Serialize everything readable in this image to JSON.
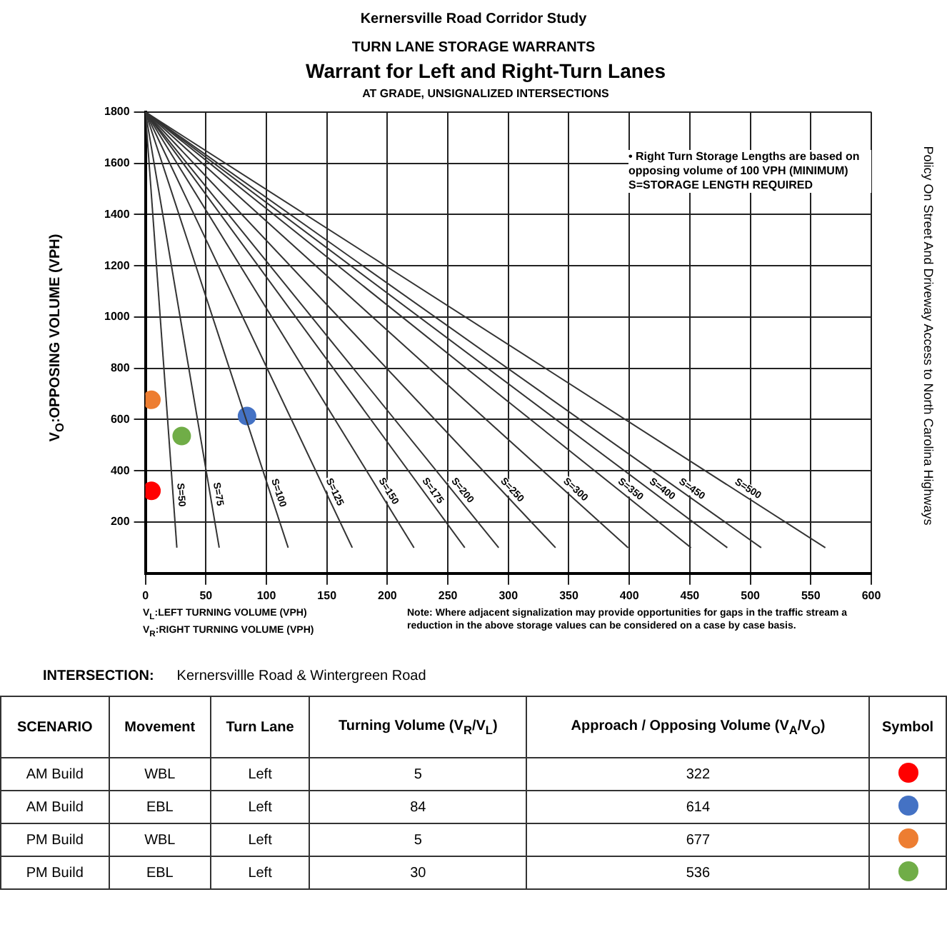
{
  "chart_data": {
    "type": "scatter",
    "title": "Warrant for Left and Right-Turn Lanes",
    "subtitle": "AT GRADE, UNSIGNALIZED INTERSECTIONS",
    "xlabel": "V$_{L}$:LEFT TURNING VOLUME (VPH)\nV$_{R}$:RIGHT TURNING VOLUME (VPH)",
    "ylabel": "V$_{O}$:OPPOSING VOLUME (VPH)",
    "xlim": [
      0,
      600
    ],
    "xticks": [
      0,
      50,
      100,
      150,
      200,
      250,
      300,
      350,
      400,
      450,
      500,
      550,
      600
    ],
    "ylim": [
      0,
      1800
    ],
    "yticks": [
      200,
      400,
      600,
      800,
      1000,
      1200,
      1400,
      1600,
      1800
    ],
    "grid": true,
    "legend": false,
    "marker": "none",
    "series": [
      {
        "name": "S=50",
        "type": "line",
        "color": "#333333",
        "x": [
          0,
          26
        ],
        "values": [
          1800,
          100
        ]
      },
      {
        "name": "S=75",
        "type": "line",
        "color": "#333333",
        "x": [
          0,
          61
        ],
        "values": [
          1800,
          100
        ]
      },
      {
        "name": "S=100",
        "type": "line",
        "color": "#333333",
        "x": [
          0,
          118
        ],
        "values": [
          1800,
          100
        ]
      },
      {
        "name": "S=125",
        "type": "line",
        "color": "#333333",
        "x": [
          0,
          171
        ],
        "values": [
          1800,
          100
        ]
      },
      {
        "name": "S=150",
        "type": "line",
        "color": "#333333",
        "x": [
          0,
          222
        ],
        "values": [
          1800,
          100
        ]
      },
      {
        "name": "S=175",
        "type": "line",
        "color": "#333333",
        "x": [
          0,
          264
        ],
        "values": [
          1800,
          100
        ]
      },
      {
        "name": "S=200",
        "type": "line",
        "color": "#333333",
        "x": [
          0,
          292
        ],
        "values": [
          1800,
          100
        ]
      },
      {
        "name": "S=250",
        "type": "line",
        "color": "#333333",
        "x": [
          0,
          339
        ],
        "values": [
          1800,
          100
        ]
      },
      {
        "name": "S=300",
        "type": "line",
        "color": "#333333",
        "x": [
          0,
          399
        ],
        "values": [
          1800,
          100
        ]
      },
      {
        "name": "S=350",
        "type": "line",
        "color": "#333333",
        "x": [
          0,
          451
        ],
        "values": [
          1800,
          100
        ]
      },
      {
        "name": "S=400",
        "type": "line",
        "color": "#333333",
        "x": [
          0,
          481
        ],
        "values": [
          1800,
          100
        ]
      },
      {
        "name": "S=450",
        "type": "line",
        "color": "#333333",
        "x": [
          0,
          509
        ],
        "values": [
          1800,
          100
        ]
      },
      {
        "name": "S=500",
        "type": "line",
        "color": "#333333",
        "x": [
          0,
          562
        ],
        "values": [
          1800,
          100
        ]
      },
      {
        "type": "scatter",
        "marker": "circle",
        "color": "#ff0000",
        "x": [
          5
        ],
        "values": [
          322
        ]
      },
      {
        "type": "scatter",
        "marker": "circle",
        "color": "#4472c4",
        "x": [
          84
        ],
        "values": [
          614
        ]
      },
      {
        "type": "scatter",
        "marker": "circle",
        "color": "#ed7d31",
        "x": [
          5
        ],
        "values": [
          677
        ]
      },
      {
        "type": "scatter",
        "marker": "circle",
        "color": "#70ad47",
        "x": [
          30
        ],
        "values": [
          536
        ]
      }
    ],
    "annotations": [
      "Kernersville Road Corridor Study",
      "TURN LANE STORAGE WARRANTS",
      "• Right Turn Storage Lengths are based on opposing volume of 100 VPH (MINIMUM)",
      "S=STORAGE LENGTH REQUIRED",
      "Note: Where adjacent signalization may provide opportunities for gaps in the traffic stream a reduction in the above storage values can be considered on a case by case basis.",
      "Policy On Street And Driveway Access to North Carolina Highways",
      "INTERSECTION:",
      "Kernersvillle Road & Wintergreen Road",
      "SCENARIO",
      "Movement",
      "Turn Lane",
      "Turning Volume (V$_{R}$/V$_{L}$)",
      "Approach / Opposing Volume (V$_{A}$/V$_{O}$)",
      "Symbol",
      "AM Build",
      "WBL",
      "Left",
      "5",
      "322",
      "AM Build",
      "EBL",
      "Left",
      "84",
      "614",
      "PM Build",
      "WBL",
      "Left",
      "5",
      "677",
      "PM Build",
      "EBL",
      "Left",
      "30",
      "536"
    ]
  }
}
